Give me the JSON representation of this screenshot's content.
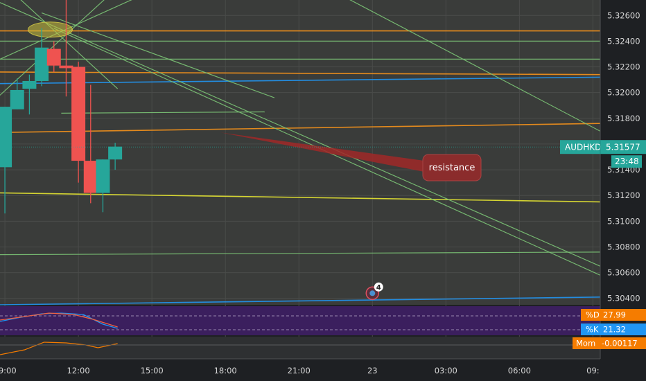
{
  "chart_data": {
    "type": "candlestick",
    "symbol": "AUDHKD",
    "price_axis": {
      "min": 5.3035,
      "max": 5.3272,
      "ticks": [
        5.326,
        5.324,
        5.322,
        5.32,
        5.318,
        5.316,
        5.314,
        5.312,
        5.31,
        5.308,
        5.306,
        5.304
      ],
      "tick_labels": [
        "5.32600",
        "5.32400",
        "5.32200",
        "5.32000",
        "5.31800",
        "5.31600",
        "5.31400",
        "5.31200",
        "5.31000",
        "5.30800",
        "5.30600",
        "5.30400"
      ]
    },
    "time_axis": {
      "min_hour": 8.8,
      "max_hour": 33.3,
      "ticks": [
        9,
        12,
        15,
        18,
        21,
        24,
        27,
        30,
        33
      ],
      "tick_labels": [
        "09:00",
        "12:00",
        "15:00",
        "18:00",
        "21:00",
        "23",
        "03:00",
        "06:00",
        "09:"
      ]
    },
    "candles": [
      {
        "t": 9.0,
        "o": 5.3142,
        "h": 5.3189,
        "l": 5.3106,
        "c": 5.3189
      },
      {
        "t": 9.5,
        "o": 5.3187,
        "h": 5.3211,
        "l": 5.3187,
        "c": 5.3202
      },
      {
        "t": 10.0,
        "o": 5.3203,
        "h": 5.3214,
        "l": 5.3183,
        "c": 5.3209
      },
      {
        "t": 10.5,
        "o": 5.3209,
        "h": 5.325,
        "l": 5.3205,
        "c": 5.3235
      },
      {
        "t": 11.0,
        "o": 5.3234,
        "h": 5.324,
        "l": 5.3216,
        "c": 5.3221
      },
      {
        "t": 11.5,
        "o": 5.3221,
        "h": 5.3275,
        "l": 5.3197,
        "c": 5.3219
      },
      {
        "t": 12.0,
        "o": 5.322,
        "h": 5.3224,
        "l": 5.313,
        "c": 5.3147
      },
      {
        "t": 12.5,
        "o": 5.3147,
        "h": 5.3206,
        "l": 5.3114,
        "c": 5.3122
      },
      {
        "t": 13.0,
        "o": 5.3122,
        "h": 5.3148,
        "l": 5.3107,
        "c": 5.3148
      },
      {
        "t": 13.5,
        "o": 5.3148,
        "h": 5.3161,
        "l": 5.314,
        "c": 5.3158
      }
    ],
    "last_price_label": "5.31577",
    "countdown": "23:48",
    "annotation": "resistance",
    "event_badge": "4",
    "stochastic": {
      "d_label": "%D",
      "d_value": "27.99",
      "k_label": "%K",
      "k_value": "21.32"
    },
    "momentum": {
      "label": "Mom",
      "value": "-0.00117"
    },
    "colors": {
      "up": "#26a69a",
      "down": "#ef5350",
      "orange_line": "#f7931a",
      "blue_line": "#2196f3",
      "yellow_line": "#e6e632",
      "green_line": "#7cc576",
      "stoch_bg": "#3b1f5e",
      "d_label_bg": "#f57c00",
      "k_label_bg": "#2196f3",
      "mom_label_bg": "#f57c00"
    }
  }
}
